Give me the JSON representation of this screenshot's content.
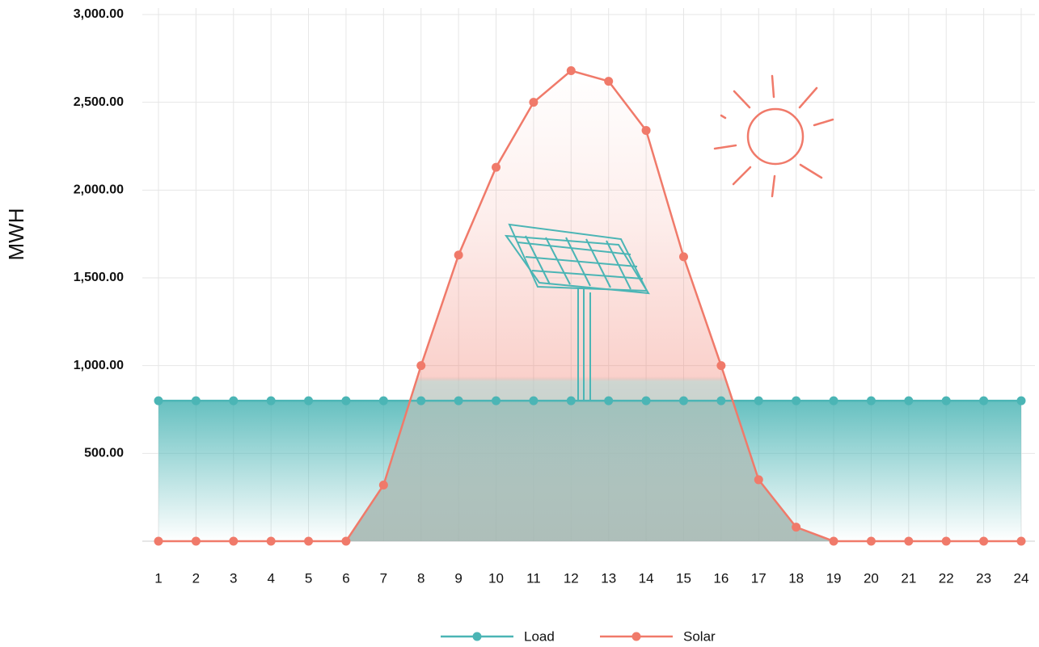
{
  "chart_data": {
    "type": "line",
    "y_label": "MWH",
    "x": [
      1,
      2,
      3,
      4,
      5,
      6,
      7,
      8,
      9,
      10,
      11,
      12,
      13,
      14,
      15,
      16,
      17,
      18,
      19,
      20,
      21,
      22,
      23,
      24
    ],
    "xlim": [
      1,
      24
    ],
    "xticks": [
      1,
      2,
      3,
      4,
      5,
      6,
      7,
      8,
      9,
      10,
      11,
      12,
      13,
      14,
      15,
      16,
      17,
      18,
      19,
      20,
      21,
      22,
      23,
      24
    ],
    "ylim": [
      0,
      3000
    ],
    "yticks": [
      {
        "value": 500,
        "label": "500.00"
      },
      {
        "value": 1000,
        "label": "1,000.00"
      },
      {
        "value": 1500,
        "label": "1,500.00"
      },
      {
        "value": 2000,
        "label": "2,000.00"
      },
      {
        "value": 2500,
        "label": "2,500.00"
      },
      {
        "value": 3000,
        "label": "3,000.00"
      }
    ],
    "grid": true,
    "legend": "bottom",
    "series": [
      {
        "name": "Load",
        "color": "#4bb5b5",
        "values": [
          800,
          800,
          800,
          800,
          800,
          800,
          800,
          800,
          800,
          800,
          800,
          800,
          800,
          800,
          800,
          800,
          800,
          800,
          800,
          800,
          800,
          800,
          800,
          800
        ]
      },
      {
        "name": "Solar",
        "color": "#f07a6a",
        "values": [
          0,
          0,
          0,
          0,
          0,
          0,
          320,
          1000,
          1630,
          2130,
          2500,
          2680,
          2620,
          2340,
          1620,
          1000,
          350,
          80,
          0,
          0,
          0,
          0,
          0,
          0
        ]
      }
    ]
  }
}
